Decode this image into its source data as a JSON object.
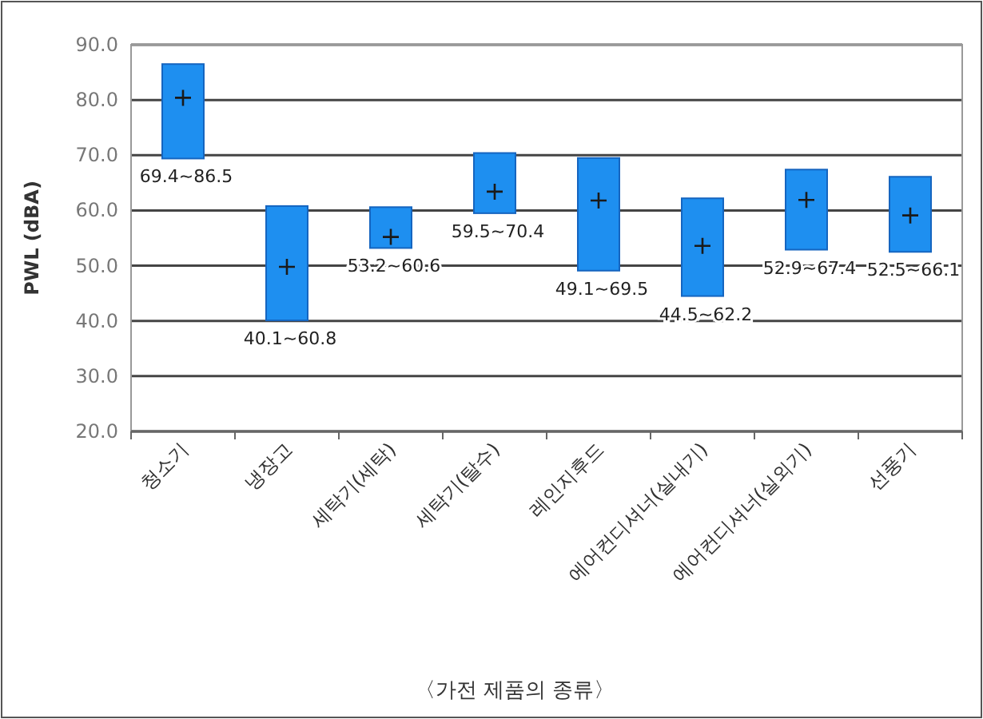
{
  "chart_data": {
    "type": "bar",
    "xlabel": "〈가전 제품의 종류〉",
    "ylabel": "PWL (dBA)",
    "categories": [
      "청소기",
      "냉장고",
      "세탁기(세탁)",
      "세탁기(탈수)",
      "레인지후드",
      "에어컨디셔너(실내기)",
      "에어컨디셔너(실외기)",
      "선풍기"
    ],
    "series": [
      {
        "color": "#1e8ff0",
        "base": [
          69.4,
          40.1,
          53.2,
          59.5,
          49.1,
          44.5,
          52.9,
          52.5
        ],
        "values": [
          17.1,
          20.7,
          7.4,
          10.9,
          20.4,
          17.7,
          14.5,
          13.6
        ]
      },
      {
        "type": "scatter",
        "marker": "cross",
        "color": "#1a1a1a",
        "x": [
          "청소기",
          "냉장고",
          "세탁기(세탁)",
          "세탁기(탈수)",
          "레인지후드",
          "에어컨디셔너(실내기)",
          "에어컨디셔너(실외기)",
          "선풍기"
        ],
        "values": [
          80.4,
          49.8,
          55.2,
          63.4,
          61.8,
          53.6,
          61.9,
          59.1
        ]
      }
    ],
    "annotations": [
      {
        "text": "69.4~86.5",
        "x": "청소기",
        "y": 69.4
      },
      {
        "text": "40.1~60.8",
        "x": "냉장고",
        "y": 40.1
      },
      {
        "text": "53.2~60.6",
        "x": "세탁기(세탁)",
        "y": 53.2
      },
      {
        "text": "59.5~70.4",
        "x": "세탁기(탈수)",
        "y": 59.5
      },
      {
        "text": "49.1~69.5",
        "x": "레인지후드",
        "y": 49.1
      },
      {
        "text": "44.5~62.2",
        "x": "에어컨디셔너(실내기)",
        "y": 44.5
      },
      {
        "text": "52.9~67.4",
        "x": "에어컨디셔너(실외기)",
        "y": 52.9
      },
      {
        "text": "52.5~66.1",
        "x": "선풍기",
        "y": 52.5
      }
    ],
    "ylim": [
      20,
      90
    ],
    "yticks": [
      {
        "value": 20,
        "label": "20.0"
      },
      {
        "value": 30,
        "label": "30.0"
      },
      {
        "value": 40,
        "label": "40.0"
      },
      {
        "value": 50,
        "label": "50.0"
      },
      {
        "value": 60,
        "label": "60.0"
      },
      {
        "value": 70,
        "label": "70.0"
      },
      {
        "value": 80,
        "label": "80.0"
      },
      {
        "value": 90,
        "label": "90.0"
      }
    ],
    "grid": "y"
  }
}
